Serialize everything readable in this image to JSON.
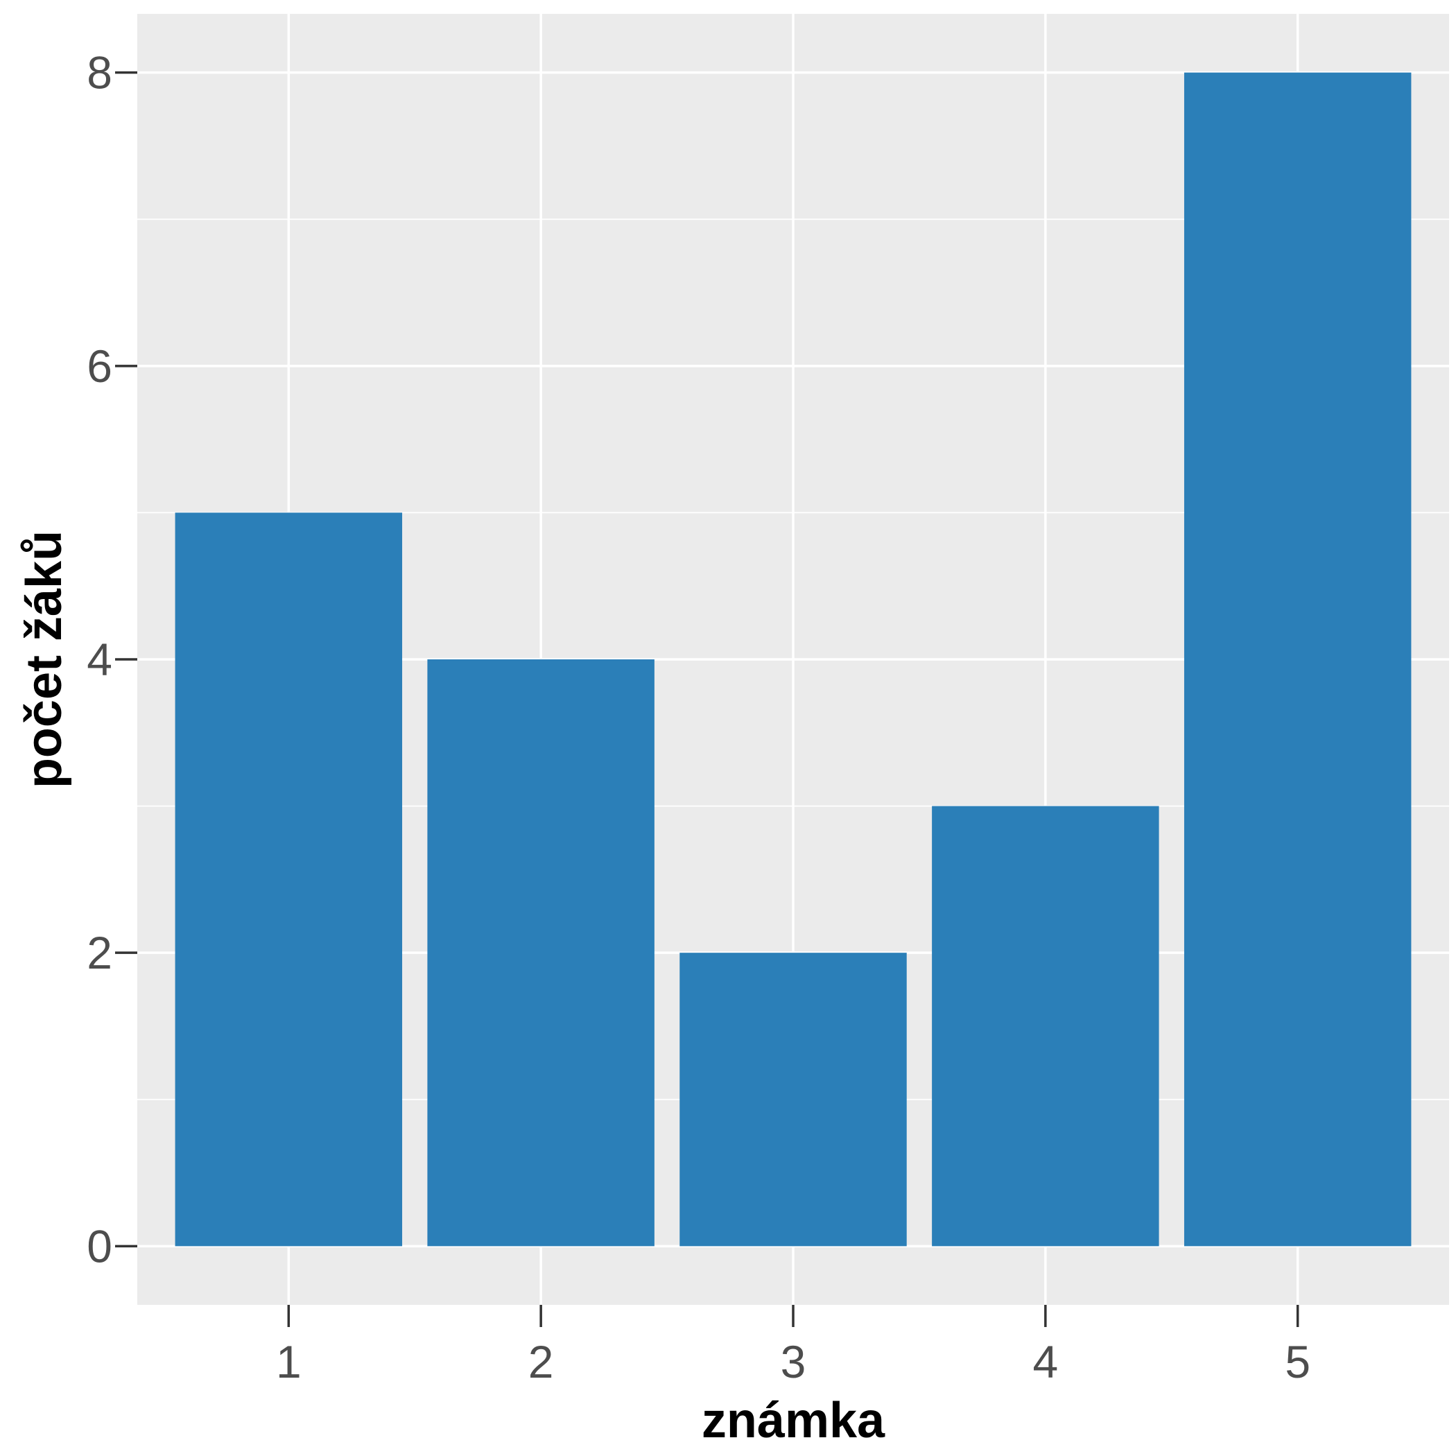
{
  "chart_data": {
    "type": "bar",
    "categories": [
      "1",
      "2",
      "3",
      "4",
      "5"
    ],
    "values": [
      5,
      4,
      2,
      3,
      8
    ],
    "title": "",
    "xlabel": "známka",
    "ylabel": "počet žáků",
    "ylim": [
      -0.4,
      8.4
    ],
    "yticks": [
      0,
      2,
      4,
      6,
      8
    ],
    "grid": true,
    "legend": "none",
    "colors": {
      "bar": "#2b7fb8",
      "panel_background": "#ebebeb",
      "grid": "#ffffff"
    }
  }
}
